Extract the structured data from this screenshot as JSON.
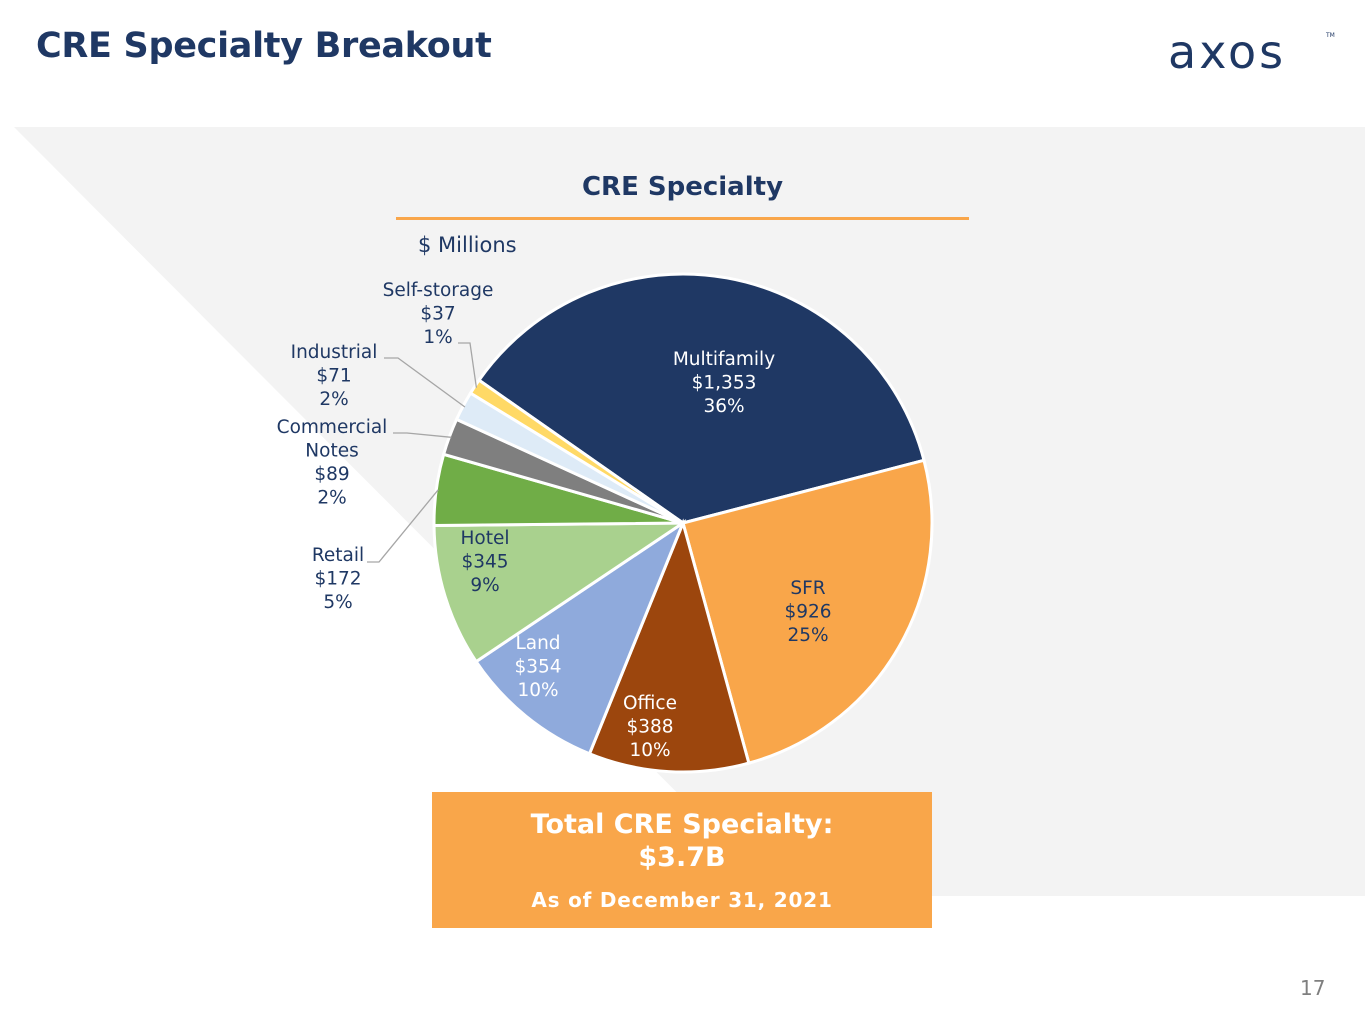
{
  "header": {
    "title": "CRE Specialty Breakout",
    "logo_text": "axos",
    "logo_tm": "TM"
  },
  "colors": {
    "navy": "#1f3864",
    "orange": "#f9a64a",
    "panel": "#f3f3f3"
  },
  "chart": {
    "title": "CRE Specialty",
    "unit": "$ Millions"
  },
  "chart_data": {
    "type": "pie",
    "title": "CRE Specialty",
    "unit": "$ Millions",
    "slices": [
      {
        "name": "Multifamily",
        "value": 1353,
        "value_label": "$1,353",
        "pct_label": "36%",
        "color": "#1f3864",
        "label_color": "#ffffff"
      },
      {
        "name": "SFR",
        "value": 926,
        "value_label": "$926",
        "pct_label": "25%",
        "color": "#f9a64a",
        "label_color": "#1f3864"
      },
      {
        "name": "Office",
        "value": 388,
        "value_label": "$388",
        "pct_label": "10%",
        "color": "#9c460d",
        "label_color": "#ffffff"
      },
      {
        "name": "Land",
        "value": 354,
        "value_label": "$354",
        "pct_label": "10%",
        "color": "#8faadc",
        "label_color": "#ffffff"
      },
      {
        "name": "Hotel",
        "value": 345,
        "value_label": "$345",
        "pct_label": "9%",
        "color": "#a9d18e",
        "label_color": "#1f3864"
      },
      {
        "name": "Retail",
        "value": 172,
        "value_label": "$172",
        "pct_label": "5%",
        "color": "#70ad47",
        "label_color": "#1f3864"
      },
      {
        "name": "Commercial Notes",
        "value": 89,
        "value_label": "$89",
        "pct_label": "2%",
        "color": "#7f7f7f",
        "label_color": "#1f3864"
      },
      {
        "name": "Industrial",
        "value": 71,
        "value_label": "$71",
        "pct_label": "2%",
        "color": "#deebf7",
        "label_color": "#1f3864"
      },
      {
        "name": "Self-storage",
        "value": 37,
        "value_label": "$37",
        "pct_label": "1%",
        "color": "#ffd966",
        "label_color": "#1f3864"
      }
    ]
  },
  "total": {
    "line1": "Total CRE Specialty:",
    "line2": "$3.7B",
    "date": "As of December 31, 2021"
  },
  "footer": {
    "page_number": "17"
  }
}
